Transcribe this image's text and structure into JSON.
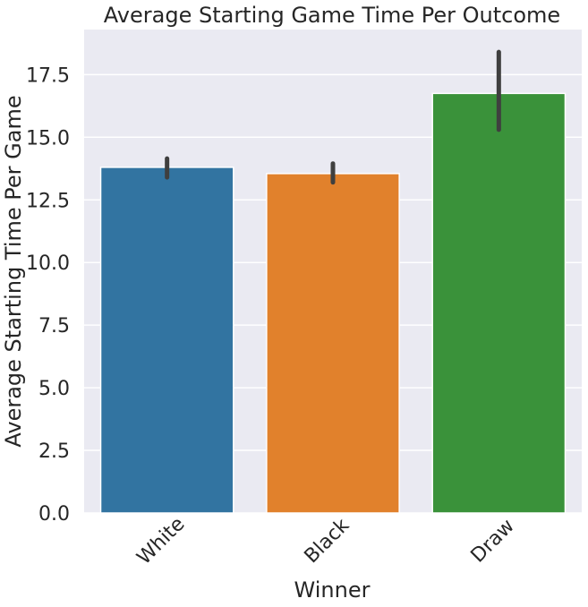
{
  "chart_data": {
    "type": "bar",
    "title": "Average Starting Game Time Per Outcome",
    "xlabel": "Winner",
    "ylabel": "Average Starting Time Per Game",
    "categories": [
      "White",
      "Black",
      "Draw"
    ],
    "values": [
      13.8,
      13.55,
      16.75
    ],
    "error_bars": [
      {
        "low": 13.4,
        "high": 14.15
      },
      {
        "low": 13.2,
        "high": 13.95
      },
      {
        "low": 15.3,
        "high": 18.4
      }
    ],
    "colors": [
      "#3274a1",
      "#e1812c",
      "#3a923a"
    ],
    "ylim": [
      0,
      19.3
    ],
    "yticks": [
      "0.0",
      "2.5",
      "5.0",
      "7.5",
      "10.0",
      "12.5",
      "15.0",
      "17.5"
    ],
    "ytick_values": [
      0,
      2.5,
      5,
      7.5,
      10,
      12.5,
      15,
      17.5
    ],
    "grid": true,
    "background": "#eaeaf2",
    "grid_color": "#ffffff",
    "error_bar_color": "#3f3f3f",
    "xtick_rotation_deg": 45
  }
}
